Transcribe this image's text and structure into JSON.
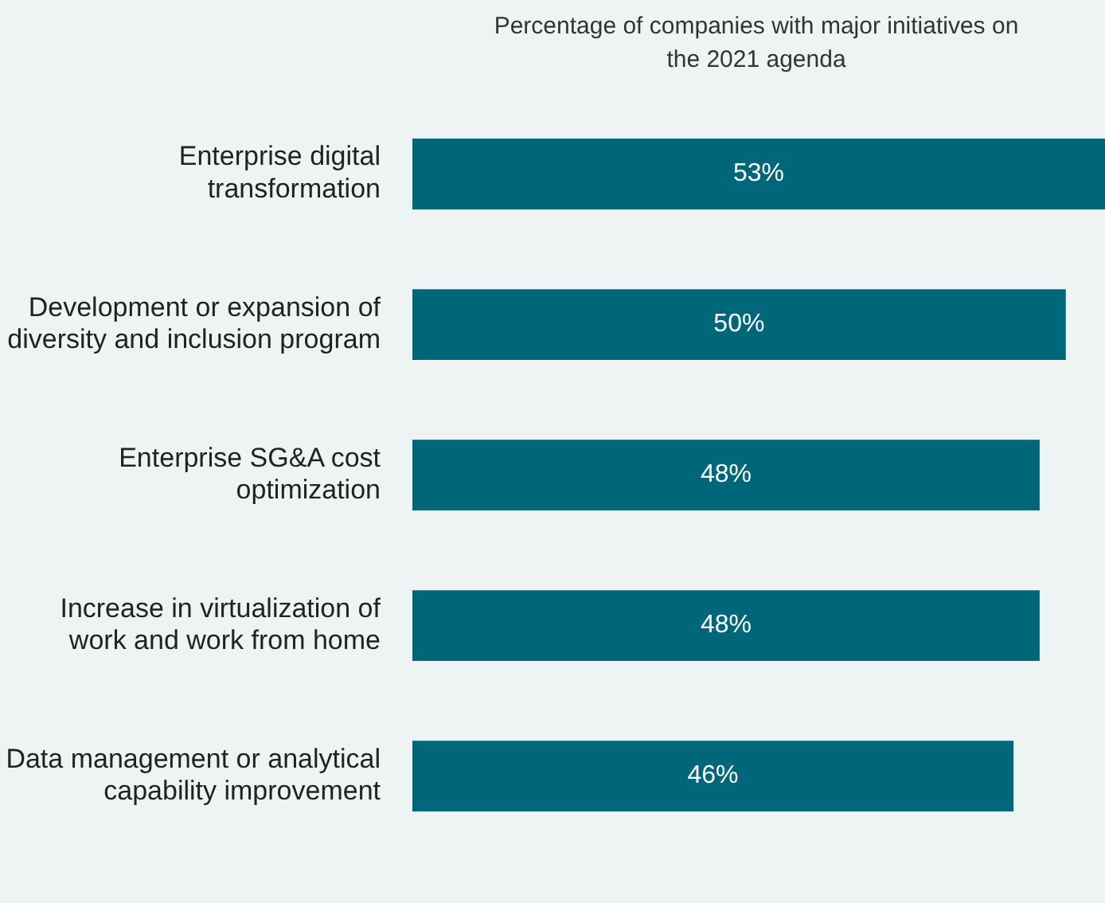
{
  "chart_data": {
    "type": "bar",
    "orientation": "horizontal",
    "title": "Percentage of companies with major initiatives on the 2021 agenda",
    "categories": [
      "Enterprise digital transformation",
      "Development or expansion of diversity and inclusion program",
      "Enterprise SG&A cost optimization",
      "Increase in virtualization of work and work from home",
      "Data management or analytical capability improvement"
    ],
    "values": [
      53,
      50,
      48,
      48,
      46
    ],
    "value_labels": [
      "53%",
      "50%",
      "48%",
      "48%",
      "46%"
    ],
    "color": "#00677a"
  }
}
